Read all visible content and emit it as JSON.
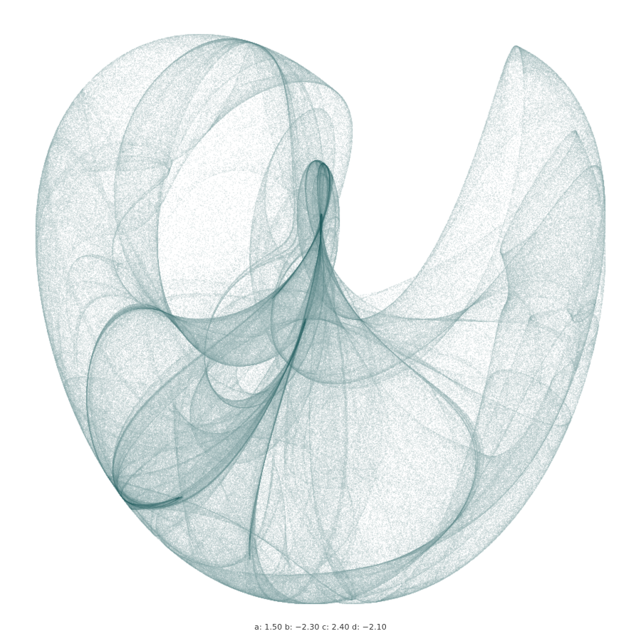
{
  "attractor": {
    "type": "de-jong",
    "params": {
      "a": 1.5,
      "b": -2.3,
      "c": 2.4,
      "d": -2.1
    },
    "ink_color": "#1e5a5c",
    "background_color": "#ffffff"
  },
  "caption": {
    "text": "a: 1.50 b: −2.30 c: 2.40 d: −2.10"
  }
}
